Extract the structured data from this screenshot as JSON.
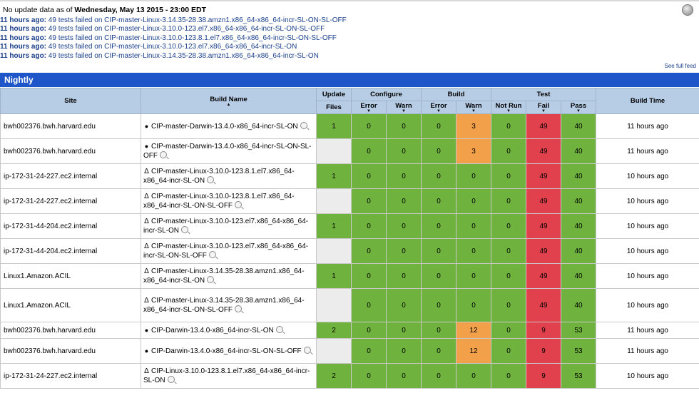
{
  "header": {
    "prefix": "No update data as of ",
    "date": "Wednesday, May 13 2015 - 23:00 EDT"
  },
  "feed": [
    {
      "age": "11 hours ago:",
      "text": " 49 tests failed on CIP-master-Linux-3.14.35-28.38.amzn1.x86_64-x86_64-incr-SL-ON-SL-OFF"
    },
    {
      "age": "11 hours ago:",
      "text": " 49 tests failed on CIP-master-Linux-3.10.0-123.el7.x86_64-x86_64-incr-SL-ON-SL-OFF"
    },
    {
      "age": "11 hours ago:",
      "text": " 49 tests failed on CIP-master-Linux-3.10.0-123.8.1.el7.x86_64-x86_64-incr-SL-ON-SL-OFF"
    },
    {
      "age": "11 hours ago:",
      "text": " 49 tests failed on CIP-master-Linux-3.10.0-123.el7.x86_64-x86_64-incr-SL-ON"
    },
    {
      "age": "11 hours ago:",
      "text": " 49 tests failed on CIP-master-Linux-3.14.35-28.38.amzn1.x86_64-x86_64-incr-SL-ON"
    }
  ],
  "see_full_feed": "See full feed",
  "section_title": "Nightly",
  "columns": {
    "site": "Site",
    "build_name": "Build Name",
    "update": "Update",
    "files": "Files",
    "configure": "Configure",
    "build": "Build",
    "test": "Test",
    "error": "Error",
    "warn": "Warn",
    "not_run": "Not Run",
    "fail": "Fail",
    "pass": "Pass",
    "build_time": "Build Time"
  },
  "rows": [
    {
      "site": "bwh002376.bwh.harvard.edu",
      "os": "apple",
      "name": "CIP-master-Darwin-13.4.0-x86_64-incr-SL-ON",
      "files": "1",
      "cfg_err": "0",
      "cfg_warn": "0",
      "b_err": "0",
      "b_warn": "3",
      "not_run": "0",
      "fail": "49",
      "pass": "40",
      "time": "11 hours ago"
    },
    {
      "site": "bwh002376.bwh.harvard.edu",
      "os": "apple",
      "name": "CIP-master-Darwin-13.4.0-x86_64-incr-SL-ON-SL-OFF",
      "files": "",
      "cfg_err": "0",
      "cfg_warn": "0",
      "b_err": "0",
      "b_warn": "3",
      "not_run": "0",
      "fail": "49",
      "pass": "40",
      "time": "11 hours ago"
    },
    {
      "site": "ip-172-31-24-227.ec2.internal",
      "os": "linux",
      "name": "CIP-master-Linux-3.10.0-123.8.1.el7.x86_64-x86_64-incr-SL-ON",
      "files": "1",
      "cfg_err": "0",
      "cfg_warn": "0",
      "b_err": "0",
      "b_warn": "0",
      "not_run": "0",
      "fail": "49",
      "pass": "40",
      "time": "10 hours ago"
    },
    {
      "site": "ip-172-31-24-227.ec2.internal",
      "os": "linux",
      "name": "CIP-master-Linux-3.10.0-123.8.1.el7.x86_64-x86_64-incr-SL-ON-SL-OFF",
      "files": "",
      "cfg_err": "0",
      "cfg_warn": "0",
      "b_err": "0",
      "b_warn": "0",
      "not_run": "0",
      "fail": "49",
      "pass": "40",
      "time": "10 hours ago"
    },
    {
      "site": "ip-172-31-44-204.ec2.internal",
      "os": "linux",
      "name": "CIP-master-Linux-3.10.0-123.el7.x86_64-x86_64-incr-SL-ON",
      "files": "1",
      "cfg_err": "0",
      "cfg_warn": "0",
      "b_err": "0",
      "b_warn": "0",
      "not_run": "0",
      "fail": "49",
      "pass": "40",
      "time": "10 hours ago"
    },
    {
      "site": "ip-172-31-44-204.ec2.internal",
      "os": "linux",
      "name": "CIP-master-Linux-3.10.0-123.el7.x86_64-x86_64-incr-SL-ON-SL-OFF",
      "files": "",
      "cfg_err": "0",
      "cfg_warn": "0",
      "b_err": "0",
      "b_warn": "0",
      "not_run": "0",
      "fail": "49",
      "pass": "40",
      "time": "10 hours ago"
    },
    {
      "site": "Linux1.Amazon.ACIL",
      "os": "linux",
      "name": "CIP-master-Linux-3.14.35-28.38.amzn1.x86_64-x86_64-incr-SL-ON",
      "files": "1",
      "cfg_err": "0",
      "cfg_warn": "0",
      "b_err": "0",
      "b_warn": "0",
      "not_run": "0",
      "fail": "49",
      "pass": "40",
      "time": "10 hours ago"
    },
    {
      "site": "Linux1.Amazon.ACIL",
      "os": "linux",
      "name": "CIP-master-Linux-3.14.35-28.38.amzn1.x86_64-x86_64-incr-SL-ON-SL-OFF",
      "files": "",
      "cfg_err": "0",
      "cfg_warn": "0",
      "b_err": "0",
      "b_warn": "0",
      "not_run": "0",
      "fail": "49",
      "pass": "40",
      "time": "10 hours ago"
    },
    {
      "site": "bwh002376.bwh.harvard.edu",
      "os": "apple",
      "name": "CIP-Darwin-13.4.0-x86_64-incr-SL-ON",
      "files": "2",
      "cfg_err": "0",
      "cfg_warn": "0",
      "b_err": "0",
      "b_warn": "12",
      "not_run": "0",
      "fail": "9",
      "pass": "53",
      "time": "11 hours ago"
    },
    {
      "site": "bwh002376.bwh.harvard.edu",
      "os": "apple",
      "name": "CIP-Darwin-13.4.0-x86_64-incr-SL-ON-SL-OFF",
      "files": "",
      "cfg_err": "0",
      "cfg_warn": "0",
      "b_err": "0",
      "b_warn": "12",
      "not_run": "0",
      "fail": "9",
      "pass": "53",
      "time": "11 hours ago"
    },
    {
      "site": "ip-172-31-24-227.ec2.internal",
      "os": "linux",
      "name": "CIP-Linux-3.10.0-123.8.1.el7.x86_64-x86_64-incr-SL-ON",
      "files": "2",
      "cfg_err": "0",
      "cfg_warn": "0",
      "b_err": "0",
      "b_warn": "0",
      "not_run": "0",
      "fail": "9",
      "pass": "53",
      "time": "10 hours ago"
    }
  ],
  "icons": {
    "apple": "apple-icon",
    "linux": "linux-icon",
    "details": "magnifier-icon",
    "rss": "rss-icon"
  },
  "colors": {
    "header_blue": "#1e56c9",
    "th_bg": "#b7cde6",
    "green": "#6fb33e",
    "orange": "#f2a04a",
    "red": "#e0414d"
  }
}
